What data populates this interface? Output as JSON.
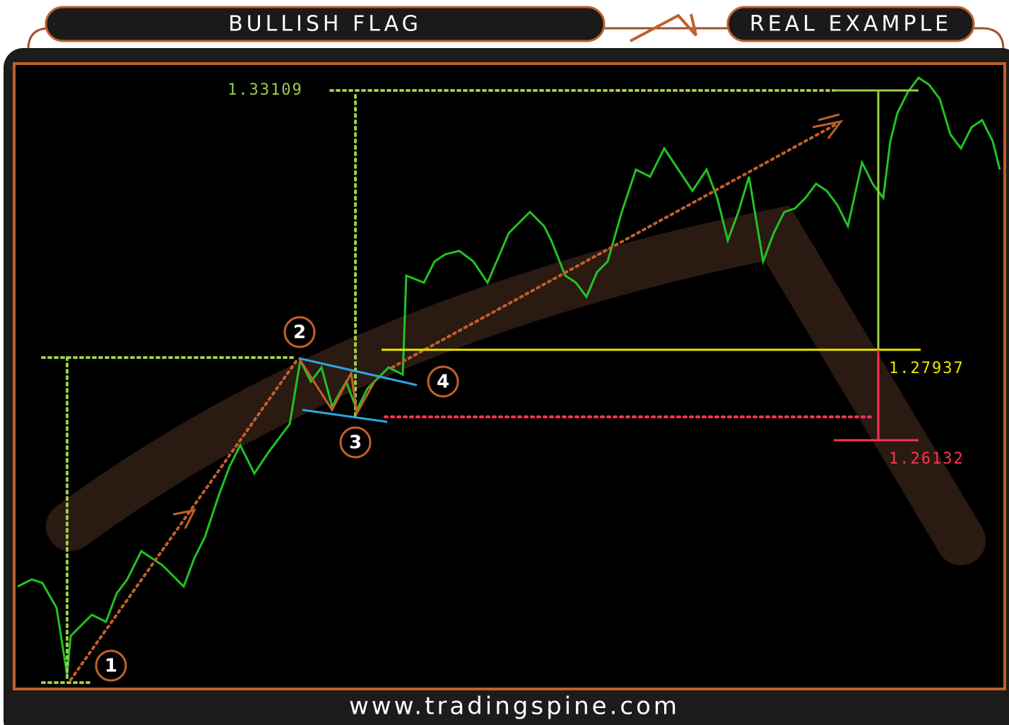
{
  "header": {
    "left_title": "BULLISH FLAG",
    "right_title": "REAL EXAMPLE"
  },
  "levels": {
    "target": "1.33109",
    "breakout": "1.27937",
    "stop": "1.26132"
  },
  "points": [
    "1",
    "2",
    "3",
    "4"
  ],
  "footer": {
    "url": "www.tradingspine.com"
  }
}
